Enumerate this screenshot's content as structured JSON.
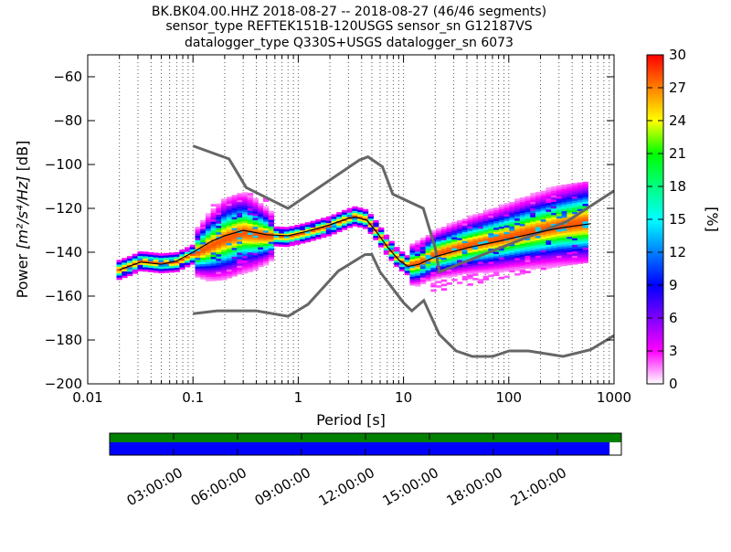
{
  "chart_data": {
    "type": "heatmap",
    "title_lines": [
      "BK.BK04.00.HHZ   2018-08-27 -- 2018-08-27  (46/46 segments)",
      "sensor_type REFTEK151B-120USGS sensor_sn G12187VS",
      "datalogger_type Q330S+USGS datalogger_sn 6073"
    ],
    "xlabel": "Period [s]",
    "ylabel_prefix": "Power ",
    "ylabel_unit": "[m²/s⁴/Hz]",
    "ylabel_suffix": " [dB]",
    "x_scale": "log",
    "xlim": [
      0.01,
      1000
    ],
    "ylim": [
      -200,
      -50
    ],
    "x_ticks": [
      {
        "value": 0.01,
        "label": "0.01"
      },
      {
        "value": 0.1,
        "label": "0.1"
      },
      {
        "value": 1,
        "label": "1"
      },
      {
        "value": 10,
        "label": "10"
      },
      {
        "value": 100,
        "label": "100"
      },
      {
        "value": 1000,
        "label": "1000"
      }
    ],
    "y_ticks": [
      {
        "value": -60,
        "label": "−60"
      },
      {
        "value": -80,
        "label": "−80"
      },
      {
        "value": -100,
        "label": "−100"
      },
      {
        "value": -120,
        "label": "−120"
      },
      {
        "value": -140,
        "label": "−140"
      },
      {
        "value": -160,
        "label": "−160"
      },
      {
        "value": -180,
        "label": "−180"
      },
      {
        "value": -200,
        "label": "−200"
      }
    ],
    "grid": "dotted-vertical",
    "colorbar": {
      "label": "[%]",
      "range": [
        0,
        30
      ],
      "ticks": [
        {
          "value": 0,
          "label": "0"
        },
        {
          "value": 3,
          "label": "3"
        },
        {
          "value": 6,
          "label": "6"
        },
        {
          "value": 9,
          "label": "9"
        },
        {
          "value": 12,
          "label": "12"
        },
        {
          "value": 15,
          "label": "15"
        },
        {
          "value": 18,
          "label": "18"
        },
        {
          "value": 21,
          "label": "21"
        },
        {
          "value": 24,
          "label": "24"
        },
        {
          "value": 27,
          "label": "27"
        },
        {
          "value": 30,
          "label": "30"
        }
      ],
      "colors": [
        "#ffffff",
        "#ff00ff",
        "#7f00ff",
        "#0000ff",
        "#0080ff",
        "#00ffff",
        "#00ff80",
        "#00ff00",
        "#ffff00",
        "#ff8000",
        "#ff0000"
      ]
    },
    "noise_model_high": [
      [
        0.1,
        -91.5
      ],
      [
        0.22,
        -97.4
      ],
      [
        0.32,
        -110.5
      ],
      [
        0.8,
        -120
      ],
      [
        3.8,
        -98
      ],
      [
        4.6,
        -96.5
      ],
      [
        6.3,
        -101
      ],
      [
        7.9,
        -113.5
      ],
      [
        15.4,
        -120
      ],
      [
        20,
        -138
      ],
      [
        21.9,
        -149
      ],
      [
        354.8,
        -126
      ],
      [
        1000,
        -112
      ]
    ],
    "noise_model_low": [
      [
        0.1,
        -168
      ],
      [
        0.17,
        -166.7
      ],
      [
        0.4,
        -166.7
      ],
      [
        0.8,
        -169.2
      ],
      [
        1.24,
        -163.7
      ],
      [
        2.4,
        -148.6
      ],
      [
        4.3,
        -141.1
      ],
      [
        5,
        -141
      ],
      [
        6,
        -149
      ],
      [
        10,
        -163
      ],
      [
        12,
        -166.7
      ],
      [
        15.6,
        -162
      ],
      [
        21.9,
        -177.5
      ],
      [
        31.6,
        -185
      ],
      [
        45,
        -187.5
      ],
      [
        70,
        -187.5
      ],
      [
        101,
        -185
      ],
      [
        154,
        -185
      ],
      [
        328,
        -187.5
      ],
      [
        600,
        -184.4
      ],
      [
        1000,
        -178
      ]
    ],
    "mode_line": [
      [
        0.02,
        -148
      ],
      [
        0.026,
        -146
      ],
      [
        0.032,
        -144
      ],
      [
        0.05,
        -145
      ],
      [
        0.07,
        -144.5
      ],
      [
        0.1,
        -141
      ],
      [
        0.15,
        -137
      ],
      [
        0.2,
        -134
      ],
      [
        0.3,
        -131
      ],
      [
        0.5,
        -132.5
      ],
      [
        0.8,
        -133
      ],
      [
        1.2,
        -131
      ],
      [
        2,
        -128
      ],
      [
        3,
        -124.5
      ],
      [
        3.5,
        -123.5
      ],
      [
        4.5,
        -125
      ],
      [
        5.5,
        -130
      ],
      [
        7,
        -137
      ],
      [
        9,
        -143
      ],
      [
        11,
        -146
      ],
      [
        14,
        -145
      ],
      [
        20,
        -141
      ],
      [
        40,
        -137
      ],
      [
        80,
        -134
      ],
      [
        150,
        -131
      ],
      [
        300,
        -128
      ],
      [
        600,
        -126
      ]
    ],
    "mean_line": [
      [
        0.02,
        -148
      ],
      [
        0.026,
        -146
      ],
      [
        0.032,
        -144.5
      ],
      [
        0.05,
        -145.5
      ],
      [
        0.07,
        -144
      ],
      [
        0.1,
        -140
      ],
      [
        0.15,
        -135
      ],
      [
        0.2,
        -132.5
      ],
      [
        0.3,
        -130
      ],
      [
        0.5,
        -132
      ],
      [
        0.8,
        -132.5
      ],
      [
        1.2,
        -130.5
      ],
      [
        2,
        -127.5
      ],
      [
        3,
        -124.5
      ],
      [
        3.5,
        -124
      ],
      [
        4.5,
        -125.5
      ],
      [
        5.5,
        -130.5
      ],
      [
        7,
        -137.5
      ],
      [
        9,
        -143.5
      ],
      [
        11,
        -146.5
      ],
      [
        14,
        -145.5
      ],
      [
        20,
        -142
      ],
      [
        40,
        -138
      ],
      [
        80,
        -135
      ],
      [
        150,
        -132
      ],
      [
        300,
        -129
      ],
      [
        600,
        -127
      ]
    ],
    "timeline": {
      "tick_labels": [
        "03:00:00",
        "06:00:00",
        "09:00:00",
        "12:00:00",
        "15:00:00",
        "18:00:00",
        "21:00:00"
      ],
      "top_bar_color": "#008000",
      "bottom_bar_color": "#0000ff",
      "top_bar_coverage": 1.0,
      "bottom_bar_coverage": 0.977
    }
  }
}
